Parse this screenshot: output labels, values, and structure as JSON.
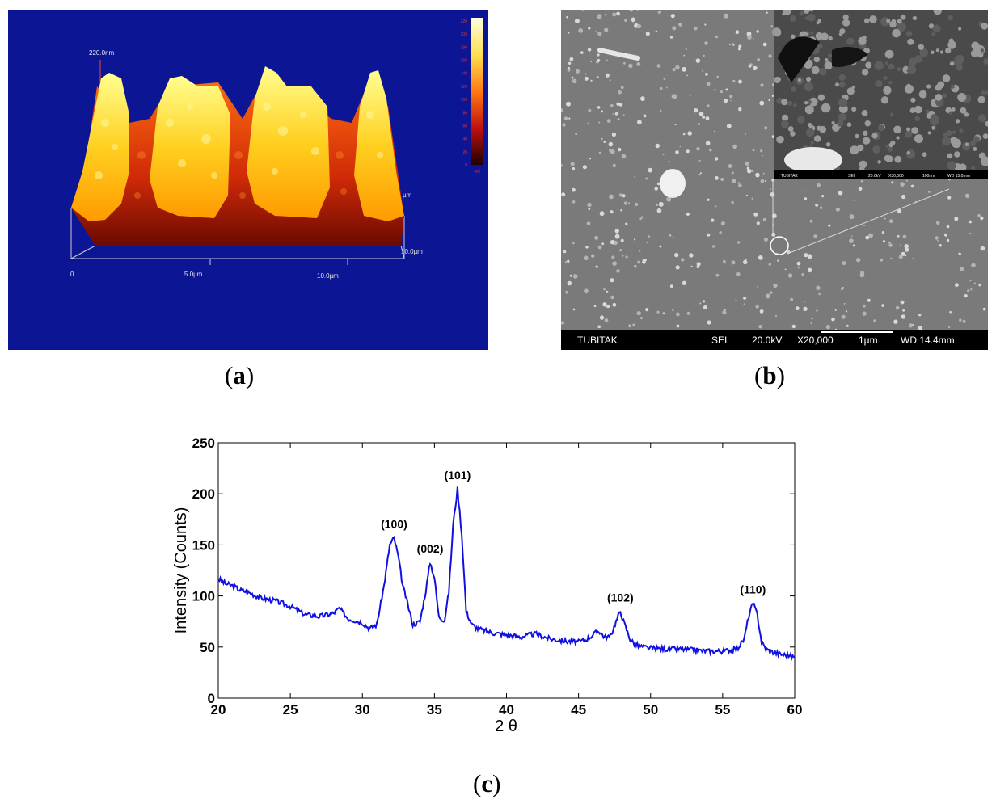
{
  "captions": {
    "a": "a",
    "b": "b",
    "c": "c"
  },
  "afm": {
    "peak_label": "220.0nm",
    "axis_labels": {
      "origin": "0",
      "x_mid": "5.0µm",
      "x_far": "10.0µm",
      "y_far": "10.0µm",
      "z_unit": "µm"
    },
    "colorbar_ticks": [
      "220",
      "200",
      "180",
      "160",
      "140",
      "120",
      "100",
      "80",
      "60",
      "40",
      "20",
      "0"
    ],
    "colorbar_bottom": "-nm"
  },
  "sem": {
    "bar": {
      "org": "TUBITAK",
      "mode": "SEI",
      "kv": "20.0kV",
      "mag": "X20,000",
      "scale": "1μm",
      "wd": "WD 14.4mm"
    },
    "inset_bar": {
      "org": "TUBITAK",
      "mode": "SEI",
      "kv": "20.0kV",
      "mag": "X30,000",
      "scale": "100nm",
      "wd": "WD 15.0mm"
    }
  },
  "chart_data": {
    "type": "line",
    "title": "",
    "xlabel": "2 θ",
    "ylabel": "Intensity (Counts)",
    "xlim": [
      20,
      60
    ],
    "ylim": [
      0,
      250
    ],
    "xticks": [
      20,
      25,
      30,
      35,
      40,
      45,
      50,
      55,
      60
    ],
    "yticks": [
      0,
      50,
      100,
      150,
      200,
      250
    ],
    "series_color": "#1010e0",
    "series": [
      {
        "x": [
          20,
          20.5,
          21,
          21.5,
          22,
          23,
          24,
          25,
          26,
          27,
          28,
          28.4,
          29,
          30,
          30.5,
          31,
          31.5,
          31.9,
          32.2,
          32.5,
          32.8,
          33,
          33.5,
          34,
          34.4,
          34.7,
          35,
          35.3,
          35.7,
          36,
          36.3,
          36.6,
          36.9,
          37.2,
          37.6,
          38,
          39,
          40,
          41,
          42,
          43,
          44,
          45,
          45.6,
          46,
          46.4,
          46.8,
          47.2,
          47.6,
          47.9,
          48.2,
          48.6,
          49,
          49.5,
          50,
          51,
          52,
          53,
          54,
          55,
          56,
          56.5,
          56.8,
          57.1,
          57.4,
          57.7,
          58,
          58.5,
          59,
          59.5,
          60
        ],
        "y": [
          117,
          112,
          110,
          106,
          104,
          98,
          95,
          90,
          82,
          80,
          83,
          88,
          78,
          74,
          68,
          72,
          110,
          150,
          157,
          138,
          110,
          100,
          72,
          75,
          105,
          133,
          118,
          80,
          76,
          104,
          170,
          205,
          160,
          85,
          72,
          68,
          64,
          62,
          60,
          63,
          58,
          56,
          55,
          58,
          62,
          66,
          60,
          60,
          75,
          85,
          72,
          57,
          52,
          50,
          49,
          48,
          48,
          47,
          46,
          46,
          48,
          58,
          80,
          93,
          82,
          55,
          48,
          45,
          43,
          42,
          40
        ]
      }
    ],
    "annotations": [
      {
        "text": "(100)",
        "x": 32.2,
        "y": 157
      },
      {
        "text": "(002)",
        "x": 34.7,
        "y": 133
      },
      {
        "text": "(101)",
        "x": 36.6,
        "y": 205
      },
      {
        "text": "(102)",
        "x": 47.9,
        "y": 85
      },
      {
        "text": "(110)",
        "x": 57.1,
        "y": 93
      }
    ]
  }
}
